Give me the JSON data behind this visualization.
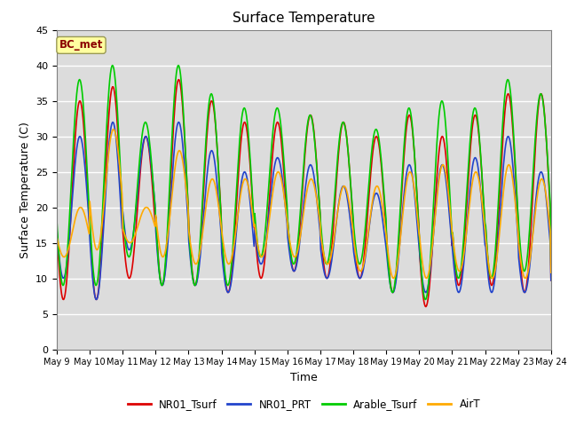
{
  "title": "Surface Temperature",
  "xlabel": "Time",
  "ylabel": "Surface Temperature (C)",
  "ylim": [
    0,
    45
  ],
  "annotation": "BC_met",
  "background_color": "#dcdcdc",
  "grid_color": "white",
  "series": {
    "NR01_Tsurf": {
      "color": "#dd0000",
      "lw": 1.2
    },
    "NR01_PRT": {
      "color": "#2244cc",
      "lw": 1.2
    },
    "Arable_Tsurf": {
      "color": "#00cc00",
      "lw": 1.2
    },
    "AirT": {
      "color": "#ffaa00",
      "lw": 1.2
    }
  },
  "tick_labels": [
    "May 9",
    "May 10",
    "May 11",
    "May 12",
    "May 13",
    "May 14",
    "May 15",
    "May 16",
    "May 17",
    "May 18",
    "May 19",
    "May 20",
    "May 21",
    "May 22",
    "May 23",
    "May 24"
  ],
  "yticks": [
    0,
    5,
    10,
    15,
    20,
    25,
    30,
    35,
    40,
    45
  ],
  "figsize": [
    6.4,
    4.8
  ],
  "dpi": 100
}
